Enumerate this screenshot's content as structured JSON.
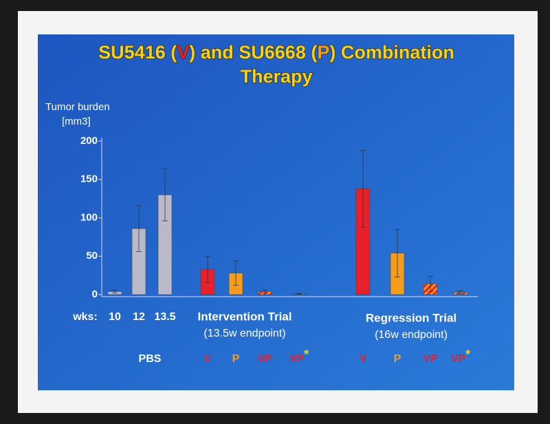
{
  "chart_data": {
    "type": "bar",
    "title_lines": [
      [
        {
          "text": "SU5416 (",
          "color": "#f6d21c"
        },
        {
          "text": "V",
          "color": "#e8202a"
        },
        {
          "text": ") and SU6668 (",
          "color": "#f6d21c"
        },
        {
          "text": "P",
          "color": "#f39c1e"
        },
        {
          "text": ") Combination",
          "color": "#f6d21c"
        }
      ],
      [
        {
          "text": "Therapy",
          "color": "#f6d21c"
        }
      ]
    ],
    "y_label": [
      "Tumor burden",
      "[mm3]"
    ],
    "ylim": [
      0,
      200
    ],
    "yticks": [
      0,
      50,
      100,
      150,
      200
    ],
    "wks_label": "wks:",
    "pbs_label": "PBS",
    "categories": [
      "10",
      "12",
      "13.5",
      "V",
      "P",
      "VP",
      "VP",
      "V",
      "P",
      "VP",
      "VP"
    ],
    "category_notes": [
      null,
      null,
      null,
      null,
      null,
      null,
      "*",
      null,
      null,
      null,
      "*"
    ],
    "values": [
      4,
      86,
      130,
      33,
      28,
      4,
      1,
      138,
      54,
      14,
      3
    ],
    "errors": [
      2,
      30,
      34,
      17,
      16,
      2,
      0.5,
      50,
      31,
      10,
      2
    ],
    "colors": [
      "#b9b9c9",
      "#b9b9c9",
      "#b9b9c9",
      "#e8202a",
      "#f39c1e",
      "#e8202a",
      "#e8202a",
      "#e8202a",
      "#f39c1e",
      "#e8202a",
      "#e8202a"
    ],
    "hatched": [
      false,
      false,
      false,
      false,
      false,
      true,
      true,
      false,
      false,
      true,
      true
    ],
    "label_colors": [
      "#ffffff",
      "#ffffff",
      "#ffffff",
      "#e8202a",
      "#f39c1e",
      "#e8202a",
      "#e8202a",
      "#e8202a",
      "#f39c1e",
      "#e8202a",
      "#e8202a"
    ],
    "note_color": "#f6d21c",
    "groups": [
      {
        "name": "Intervention Trial",
        "note": "(13.5w endpoint)"
      },
      {
        "name": "Regression Trial",
        "note": "(16w endpoint)"
      }
    ]
  }
}
